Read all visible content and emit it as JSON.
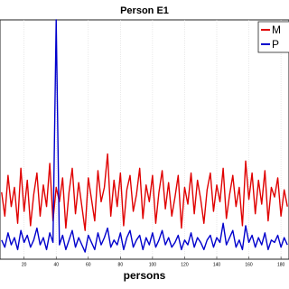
{
  "chart_data": {
    "type": "line",
    "title": "Person E1",
    "x_label": "persons",
    "x": [
      6,
      8,
      10,
      12,
      14,
      16,
      18,
      20,
      22,
      24,
      26,
      28,
      30,
      32,
      34,
      36,
      38,
      40,
      42,
      44,
      46,
      48,
      50,
      52,
      54,
      56,
      58,
      60,
      62,
      64,
      66,
      68,
      70,
      72,
      74,
      76,
      78,
      80,
      82,
      84,
      86,
      88,
      90,
      92,
      94,
      96,
      98,
      100,
      102,
      104,
      106,
      108,
      110,
      112,
      114,
      116,
      118,
      120,
      122,
      124,
      126,
      128,
      130,
      132,
      134,
      136,
      138,
      140,
      142,
      144,
      146,
      148,
      150,
      152,
      154,
      156,
      158,
      160,
      162,
      164,
      166,
      168,
      170,
      172,
      174,
      176,
      178,
      180,
      182,
      184
    ],
    "series": [
      {
        "name": "M",
        "color": "#e00000",
        "values": [
          28,
          18,
          35,
          22,
          30,
          15,
          38,
          20,
          33,
          14,
          27,
          36,
          18,
          31,
          22,
          40,
          16,
          30,
          24,
          34,
          13,
          28,
          38,
          19,
          32,
          22,
          12,
          34,
          25,
          16,
          37,
          24,
          30,
          44,
          18,
          33,
          22,
          36,
          14,
          29,
          35,
          20,
          27,
          38,
          17,
          31,
          24,
          35,
          15,
          28,
          37,
          21,
          32,
          18,
          26,
          35,
          13,
          30,
          23,
          36,
          19,
          33,
          25,
          15,
          29,
          36,
          20,
          31,
          24,
          38,
          17,
          27,
          35,
          22,
          30,
          14,
          41,
          25,
          36,
          19,
          33,
          23,
          37,
          16,
          30,
          26,
          34,
          18,
          29,
          22
        ]
      },
      {
        "name": "P",
        "color": "#0000cc",
        "values": [
          8,
          5,
          11,
          6,
          9,
          4,
          12,
          7,
          10,
          5,
          8,
          13,
          6,
          9,
          4,
          11,
          7,
          100,
          6,
          10,
          4,
          8,
          12,
          5,
          9,
          6,
          3,
          10,
          7,
          4,
          11,
          6,
          9,
          13,
          5,
          8,
          6,
          11,
          4,
          9,
          12,
          5,
          8,
          10,
          4,
          9,
          6,
          11,
          5,
          8,
          12,
          6,
          9,
          5,
          7,
          10,
          4,
          8,
          6,
          11,
          5,
          9,
          7,
          4,
          8,
          10,
          5,
          9,
          7,
          15,
          6,
          9,
          12,
          5,
          8,
          4,
          14,
          7,
          10,
          5,
          9,
          6,
          11,
          4,
          8,
          7,
          10,
          5,
          9,
          6
        ]
      }
    ],
    "xlim": [
      5,
      185
    ],
    "ylim": [
      0,
      100
    ],
    "xticks": [
      20,
      40,
      60,
      80,
      100,
      120,
      140,
      160,
      180
    ],
    "grid": true,
    "legend": "upper right"
  }
}
